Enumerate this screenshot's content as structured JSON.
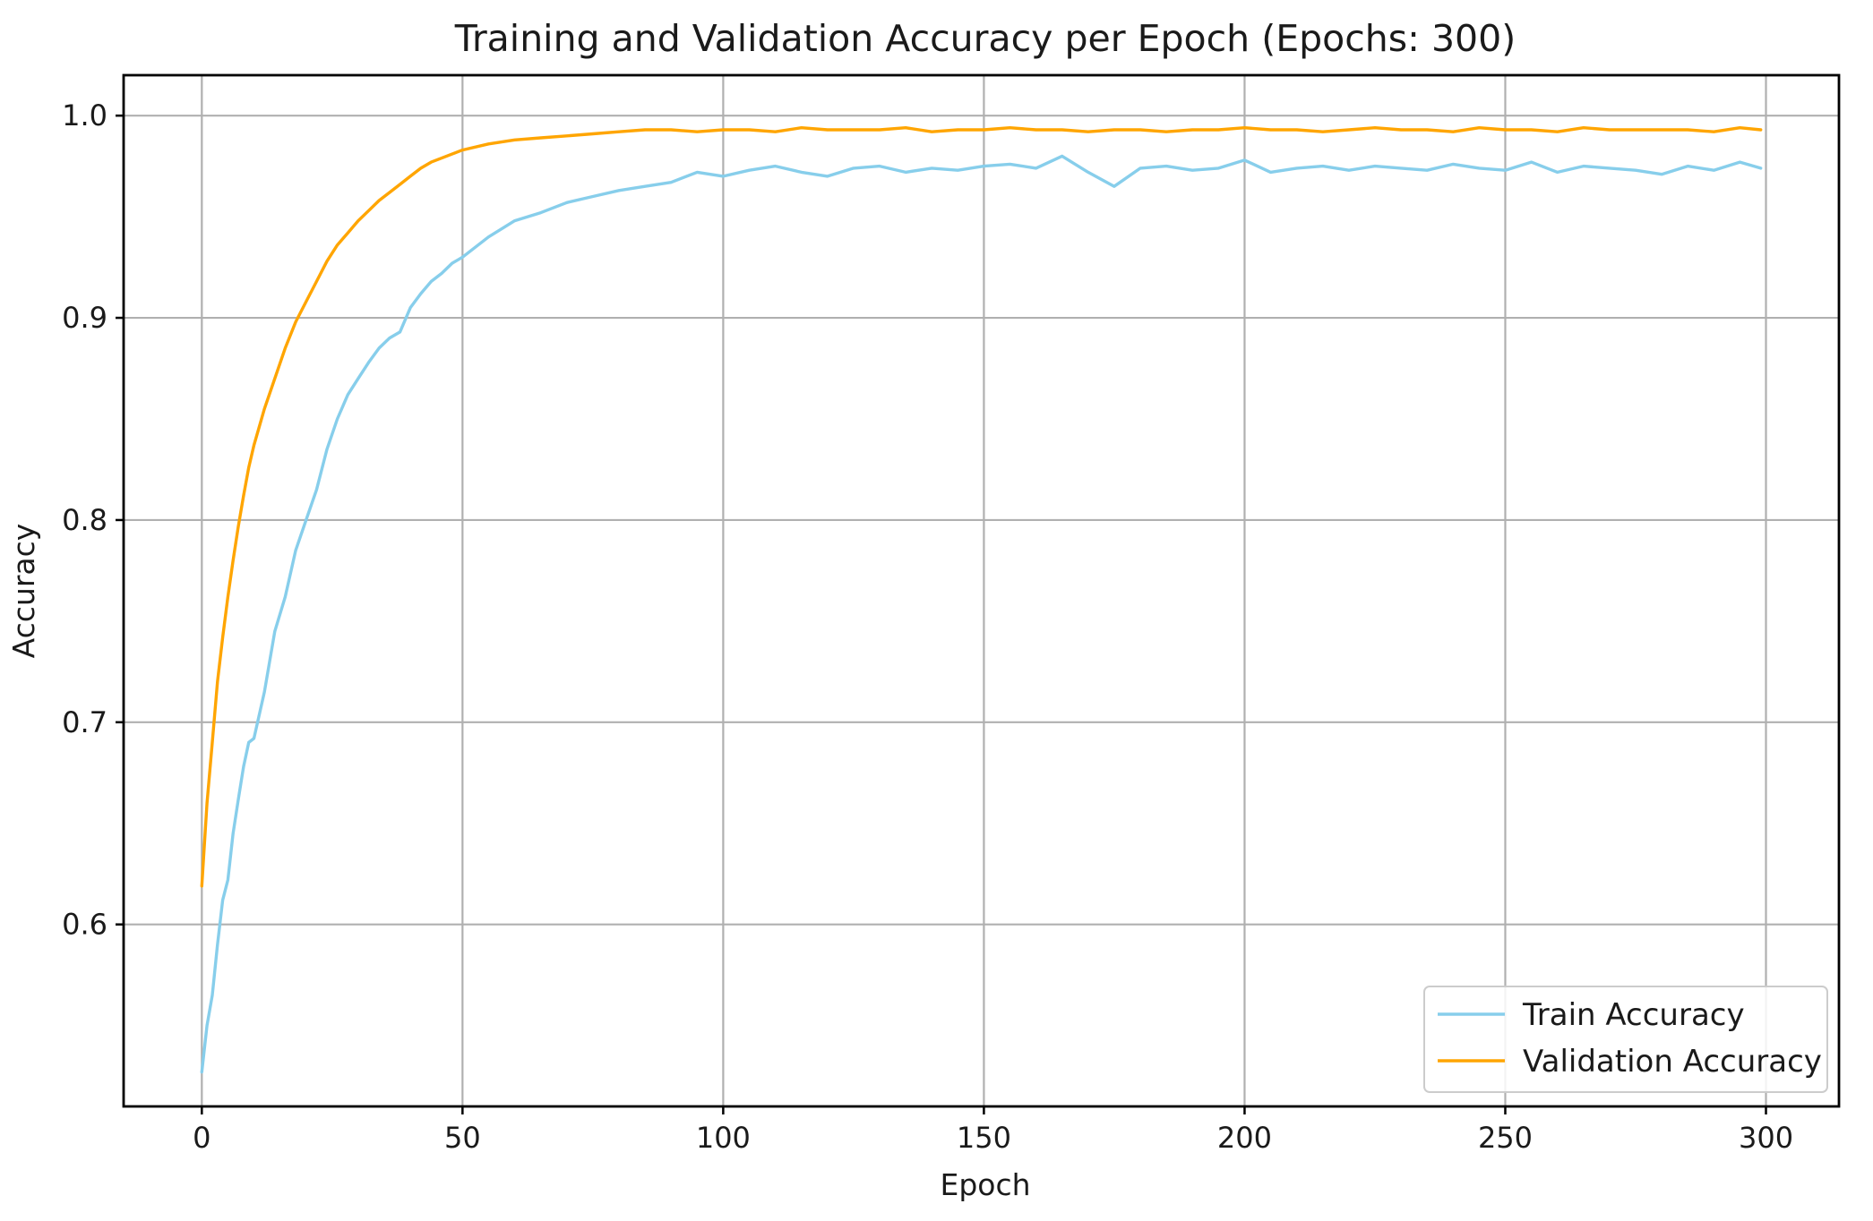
{
  "chart_data": {
    "type": "line",
    "title": "Training and Validation Accuracy per Epoch (Epochs: 300)",
    "xlabel": "Epoch",
    "ylabel": "Accuracy",
    "xlim": [
      -15,
      314
    ],
    "ylim": [
      0.51,
      1.02
    ],
    "xticks": [
      0,
      50,
      100,
      150,
      200,
      250,
      300
    ],
    "yticks": [
      0.6,
      0.7,
      0.8,
      0.9,
      1.0
    ],
    "xtick_labels": [
      "0",
      "50",
      "100",
      "150",
      "200",
      "250",
      "300"
    ],
    "ytick_labels": [
      "0.6",
      "0.7",
      "0.8",
      "0.9",
      "1.0"
    ],
    "grid": true,
    "legend_position": "bottom-right",
    "series": [
      {
        "name": "Train Accuracy",
        "color": "#87ceeb",
        "x": [
          0,
          1,
          2,
          3,
          4,
          5,
          6,
          7,
          8,
          9,
          10,
          12,
          14,
          16,
          18,
          20,
          22,
          24,
          26,
          28,
          30,
          32,
          34,
          36,
          38,
          40,
          42,
          44,
          46,
          48,
          50,
          55,
          60,
          65,
          70,
          75,
          80,
          85,
          90,
          95,
          100,
          105,
          110,
          115,
          120,
          125,
          130,
          135,
          140,
          145,
          150,
          155,
          160,
          165,
          170,
          175,
          180,
          185,
          190,
          195,
          200,
          205,
          210,
          215,
          220,
          225,
          230,
          235,
          240,
          245,
          250,
          255,
          260,
          265,
          270,
          275,
          280,
          285,
          290,
          295,
          299
        ],
        "y": [
          0.527,
          0.55,
          0.565,
          0.59,
          0.612,
          0.622,
          0.645,
          0.662,
          0.678,
          0.69,
          0.692,
          0.715,
          0.745,
          0.762,
          0.785,
          0.8,
          0.815,
          0.835,
          0.85,
          0.862,
          0.87,
          0.878,
          0.885,
          0.89,
          0.893,
          0.905,
          0.912,
          0.918,
          0.922,
          0.927,
          0.93,
          0.94,
          0.948,
          0.952,
          0.957,
          0.96,
          0.963,
          0.965,
          0.967,
          0.972,
          0.97,
          0.973,
          0.975,
          0.972,
          0.97,
          0.974,
          0.975,
          0.972,
          0.974,
          0.973,
          0.975,
          0.976,
          0.974,
          0.98,
          0.972,
          0.965,
          0.974,
          0.975,
          0.973,
          0.974,
          0.978,
          0.972,
          0.974,
          0.975,
          0.973,
          0.975,
          0.974,
          0.973,
          0.976,
          0.974,
          0.973,
          0.977,
          0.972,
          0.975,
          0.974,
          0.973,
          0.971,
          0.975,
          0.973,
          0.977,
          0.974
        ]
      },
      {
        "name": "Validation Accuracy",
        "color": "#ffa500",
        "x": [
          0,
          1,
          2,
          3,
          4,
          5,
          6,
          7,
          8,
          9,
          10,
          12,
          14,
          16,
          18,
          20,
          22,
          24,
          26,
          28,
          30,
          32,
          34,
          36,
          38,
          40,
          42,
          44,
          46,
          48,
          50,
          55,
          60,
          65,
          70,
          75,
          80,
          85,
          90,
          95,
          100,
          105,
          110,
          115,
          120,
          125,
          130,
          135,
          140,
          145,
          150,
          155,
          160,
          165,
          170,
          175,
          180,
          185,
          190,
          195,
          200,
          205,
          210,
          215,
          220,
          225,
          230,
          235,
          240,
          245,
          250,
          255,
          260,
          265,
          270,
          275,
          280,
          285,
          290,
          295,
          299
        ],
        "y": [
          0.619,
          0.66,
          0.69,
          0.72,
          0.742,
          0.762,
          0.78,
          0.797,
          0.812,
          0.826,
          0.837,
          0.855,
          0.87,
          0.885,
          0.898,
          0.908,
          0.918,
          0.928,
          0.936,
          0.942,
          0.948,
          0.953,
          0.958,
          0.962,
          0.966,
          0.97,
          0.974,
          0.977,
          0.979,
          0.981,
          0.983,
          0.986,
          0.988,
          0.989,
          0.99,
          0.991,
          0.992,
          0.993,
          0.993,
          0.992,
          0.993,
          0.993,
          0.992,
          0.994,
          0.993,
          0.993,
          0.993,
          0.994,
          0.992,
          0.993,
          0.993,
          0.994,
          0.993,
          0.993,
          0.992,
          0.993,
          0.993,
          0.992,
          0.993,
          0.993,
          0.994,
          0.993,
          0.993,
          0.992,
          0.993,
          0.994,
          0.993,
          0.993,
          0.992,
          0.994,
          0.993,
          0.993,
          0.992,
          0.994,
          0.993,
          0.993,
          0.993,
          0.993,
          0.992,
          0.994,
          0.993
        ]
      }
    ]
  }
}
